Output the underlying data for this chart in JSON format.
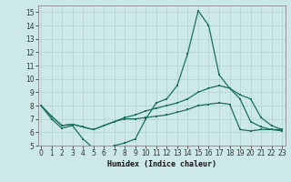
{
  "xlabel": "Humidex (Indice chaleur)",
  "background_color": "#cce8e8",
  "grid_color": "#b8d8d8",
  "line_color": "#1a6e60",
  "xlim": [
    -0.3,
    23.3
  ],
  "ylim": [
    5,
    15.5
  ],
  "xticks": [
    0,
    1,
    2,
    3,
    4,
    5,
    6,
    7,
    8,
    9,
    10,
    11,
    12,
    13,
    14,
    15,
    16,
    17,
    18,
    19,
    20,
    21,
    22,
    23
  ],
  "yticks": [
    5,
    6,
    7,
    8,
    9,
    10,
    11,
    12,
    13,
    14,
    15
  ],
  "line1_y": [
    8.0,
    7.0,
    6.3,
    6.5,
    5.5,
    4.8,
    4.8,
    5.0,
    5.2,
    5.5,
    7.0,
    8.2,
    8.5,
    9.5,
    11.9,
    15.1,
    14.0,
    10.3,
    9.3,
    8.5,
    6.8,
    6.4,
    6.2,
    6.1
  ],
  "line2_y": [
    8.0,
    7.2,
    6.5,
    6.6,
    6.4,
    6.2,
    6.5,
    6.8,
    7.1,
    7.3,
    7.6,
    7.8,
    8.0,
    8.2,
    8.5,
    9.0,
    9.3,
    9.5,
    9.3,
    8.8,
    8.5,
    7.1,
    6.5,
    6.2
  ],
  "line3_y": [
    8.0,
    7.2,
    6.5,
    6.6,
    6.4,
    6.2,
    6.5,
    6.8,
    7.0,
    7.0,
    7.1,
    7.2,
    7.3,
    7.5,
    7.7,
    8.0,
    8.1,
    8.2,
    8.1,
    6.2,
    6.1,
    6.2,
    6.2,
    6.2
  ]
}
